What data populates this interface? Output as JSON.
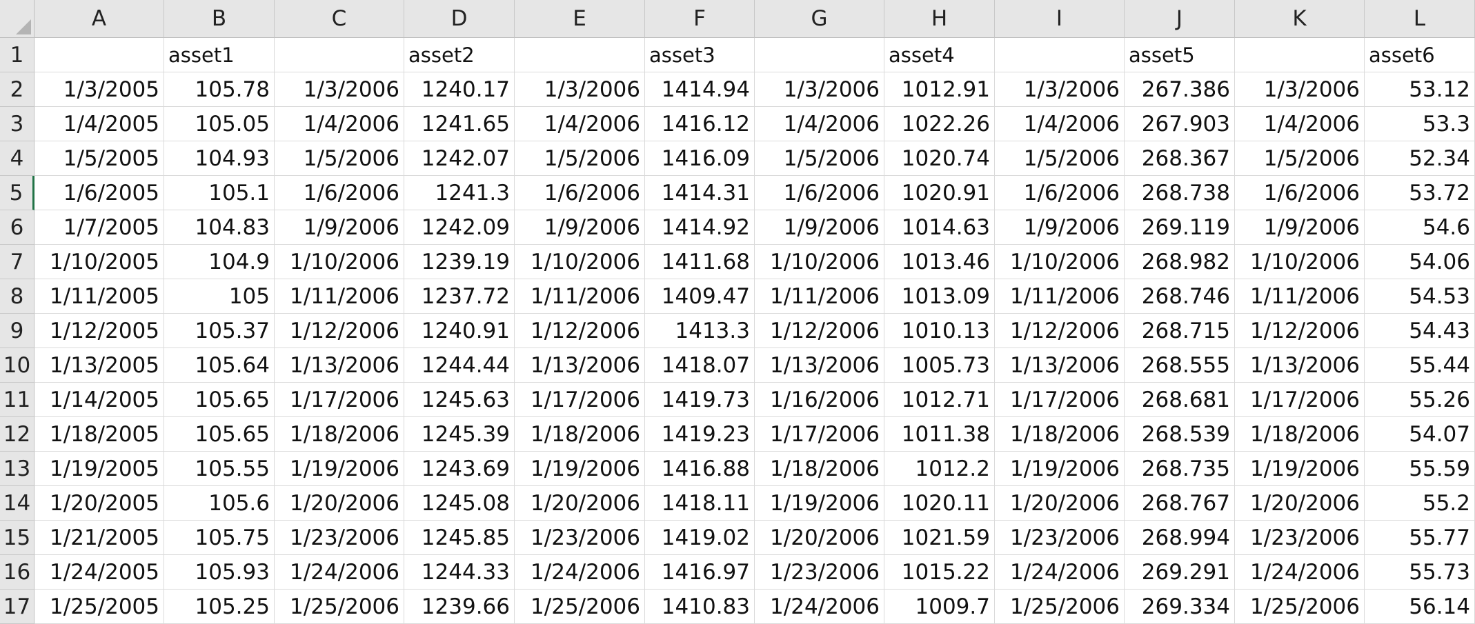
{
  "columns": [
    "A",
    "B",
    "C",
    "D",
    "E",
    "F",
    "G",
    "H",
    "I",
    "J",
    "K",
    "L"
  ],
  "active_row": 5,
  "rows": [
    {
      "num": "1",
      "cells": [
        "",
        "asset1",
        "",
        "asset2",
        "",
        "asset3",
        "",
        "asset4",
        "",
        "asset5",
        "",
        "asset6"
      ]
    },
    {
      "num": "2",
      "cells": [
        "1/3/2005",
        "105.78",
        "1/3/2006",
        "1240.17",
        "1/3/2006",
        "1414.94",
        "1/3/2006",
        "1012.91",
        "1/3/2006",
        "267.386",
        "1/3/2006",
        "53.12"
      ]
    },
    {
      "num": "3",
      "cells": [
        "1/4/2005",
        "105.05",
        "1/4/2006",
        "1241.65",
        "1/4/2006",
        "1416.12",
        "1/4/2006",
        "1022.26",
        "1/4/2006",
        "267.903",
        "1/4/2006",
        "53.3"
      ]
    },
    {
      "num": "4",
      "cells": [
        "1/5/2005",
        "104.93",
        "1/5/2006",
        "1242.07",
        "1/5/2006",
        "1416.09",
        "1/5/2006",
        "1020.74",
        "1/5/2006",
        "268.367",
        "1/5/2006",
        "52.34"
      ]
    },
    {
      "num": "5",
      "cells": [
        "1/6/2005",
        "105.1",
        "1/6/2006",
        "1241.3",
        "1/6/2006",
        "1414.31",
        "1/6/2006",
        "1020.91",
        "1/6/2006",
        "268.738",
        "1/6/2006",
        "53.72"
      ]
    },
    {
      "num": "6",
      "cells": [
        "1/7/2005",
        "104.83",
        "1/9/2006",
        "1242.09",
        "1/9/2006",
        "1414.92",
        "1/9/2006",
        "1014.63",
        "1/9/2006",
        "269.119",
        "1/9/2006",
        "54.6"
      ]
    },
    {
      "num": "7",
      "cells": [
        "1/10/2005",
        "104.9",
        "1/10/2006",
        "1239.19",
        "1/10/2006",
        "1411.68",
        "1/10/2006",
        "1013.46",
        "1/10/2006",
        "268.982",
        "1/10/2006",
        "54.06"
      ]
    },
    {
      "num": "8",
      "cells": [
        "1/11/2005",
        "105",
        "1/11/2006",
        "1237.72",
        "1/11/2006",
        "1409.47",
        "1/11/2006",
        "1013.09",
        "1/11/2006",
        "268.746",
        "1/11/2006",
        "54.53"
      ]
    },
    {
      "num": "9",
      "cells": [
        "1/12/2005",
        "105.37",
        "1/12/2006",
        "1240.91",
        "1/12/2006",
        "1413.3",
        "1/12/2006",
        "1010.13",
        "1/12/2006",
        "268.715",
        "1/12/2006",
        "54.43"
      ]
    },
    {
      "num": "10",
      "cells": [
        "1/13/2005",
        "105.64",
        "1/13/2006",
        "1244.44",
        "1/13/2006",
        "1418.07",
        "1/13/2006",
        "1005.73",
        "1/13/2006",
        "268.555",
        "1/13/2006",
        "55.44"
      ]
    },
    {
      "num": "11",
      "cells": [
        "1/14/2005",
        "105.65",
        "1/17/2006",
        "1245.63",
        "1/17/2006",
        "1419.73",
        "1/16/2006",
        "1012.71",
        "1/17/2006",
        "268.681",
        "1/17/2006",
        "55.26"
      ]
    },
    {
      "num": "12",
      "cells": [
        "1/18/2005",
        "105.65",
        "1/18/2006",
        "1245.39",
        "1/18/2006",
        "1419.23",
        "1/17/2006",
        "1011.38",
        "1/18/2006",
        "268.539",
        "1/18/2006",
        "54.07"
      ]
    },
    {
      "num": "13",
      "cells": [
        "1/19/2005",
        "105.55",
        "1/19/2006",
        "1243.69",
        "1/19/2006",
        "1416.88",
        "1/18/2006",
        "1012.2",
        "1/19/2006",
        "268.735",
        "1/19/2006",
        "55.59"
      ]
    },
    {
      "num": "14",
      "cells": [
        "1/20/2005",
        "105.6",
        "1/20/2006",
        "1245.08",
        "1/20/2006",
        "1418.11",
        "1/19/2006",
        "1020.11",
        "1/20/2006",
        "268.767",
        "1/20/2006",
        "55.2"
      ]
    },
    {
      "num": "15",
      "cells": [
        "1/21/2005",
        "105.75",
        "1/23/2006",
        "1245.85",
        "1/23/2006",
        "1419.02",
        "1/20/2006",
        "1021.59",
        "1/23/2006",
        "268.994",
        "1/23/2006",
        "55.77"
      ]
    },
    {
      "num": "16",
      "cells": [
        "1/24/2005",
        "105.93",
        "1/24/2006",
        "1244.33",
        "1/24/2006",
        "1416.97",
        "1/23/2006",
        "1015.22",
        "1/24/2006",
        "269.291",
        "1/24/2006",
        "55.73"
      ]
    },
    {
      "num": "17",
      "cells": [
        "1/25/2005",
        "105.25",
        "1/25/2006",
        "1239.66",
        "1/25/2006",
        "1410.83",
        "1/24/2006",
        "1009.7",
        "1/25/2006",
        "269.334",
        "1/25/2006",
        "56.14"
      ]
    }
  ]
}
